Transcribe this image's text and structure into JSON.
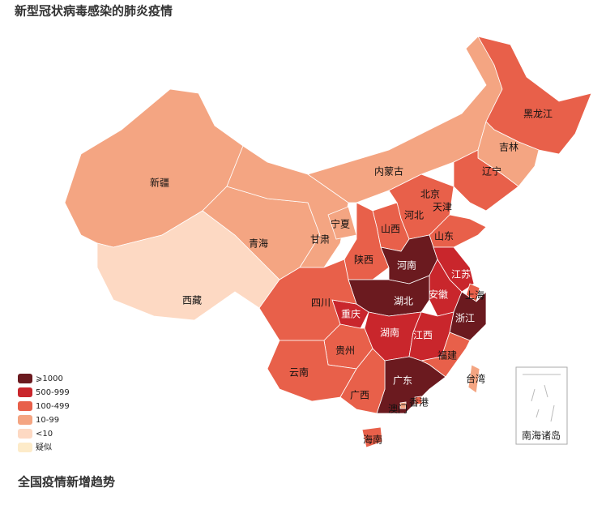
{
  "title": "新型冠状病毒感染的肺炎疫情",
  "map": {
    "regions": [
      {
        "name": "新疆",
        "color": "#f4a582"
      },
      {
        "name": "西藏",
        "color": "#fdd9c3"
      },
      {
        "name": "青海",
        "color": "#f4a582"
      },
      {
        "name": "甘肃",
        "color": "#f4a582"
      },
      {
        "name": "宁夏",
        "color": "#f4a582"
      },
      {
        "name": "内蒙古",
        "color": "#f4a582"
      },
      {
        "name": "黑龙江",
        "color": "#e8604a"
      },
      {
        "name": "吉林",
        "color": "#f4a582"
      },
      {
        "name": "辽宁",
        "color": "#e8604a"
      },
      {
        "name": "北京",
        "color": "#e8604a"
      },
      {
        "name": "天津",
        "color": "#e8604a"
      },
      {
        "name": "河北",
        "color": "#e8604a"
      },
      {
        "name": "山西",
        "color": "#e8604a"
      },
      {
        "name": "山东",
        "color": "#e8604a"
      },
      {
        "name": "陕西",
        "color": "#e8604a"
      },
      {
        "name": "河南",
        "color": "#6b1a1f"
      },
      {
        "name": "江苏",
        "color": "#c9262c"
      },
      {
        "name": "安徽",
        "color": "#c9262c"
      },
      {
        "name": "上海",
        "color": "#e8604a"
      },
      {
        "name": "湖北",
        "color": "#6b1a1f"
      },
      {
        "name": "浙江",
        "color": "#6b1a1f"
      },
      {
        "name": "重庆",
        "color": "#c9262c"
      },
      {
        "name": "四川",
        "color": "#e8604a"
      },
      {
        "name": "湖南",
        "color": "#c9262c"
      },
      {
        "name": "江西",
        "color": "#c9262c"
      },
      {
        "name": "贵州",
        "color": "#e8604a"
      },
      {
        "name": "云南",
        "color": "#e8604a"
      },
      {
        "name": "福建",
        "color": "#e8604a"
      },
      {
        "name": "广东",
        "color": "#6b1a1f"
      },
      {
        "name": "广西",
        "color": "#e8604a"
      },
      {
        "name": "台湾",
        "color": "#f4a582"
      },
      {
        "name": "香港",
        "color": "#e8604a"
      },
      {
        "name": "澳门",
        "color": "#f4a582"
      },
      {
        "name": "海南",
        "color": "#e8604a"
      }
    ],
    "legend": [
      {
        "label": "⩾1000",
        "color": "#6b1a1f"
      },
      {
        "label": "500-999",
        "color": "#c9262c"
      },
      {
        "label": "100-499",
        "color": "#e8604a"
      },
      {
        "label": "10-99",
        "color": "#f4a582"
      },
      {
        "label": "<10",
        "color": "#fdd9c3"
      },
      {
        "label": "疑似",
        "color": "#fdebc9"
      }
    ],
    "inset_label": "南海诸岛"
  },
  "subtitle": "全国疫情新增趋势"
}
